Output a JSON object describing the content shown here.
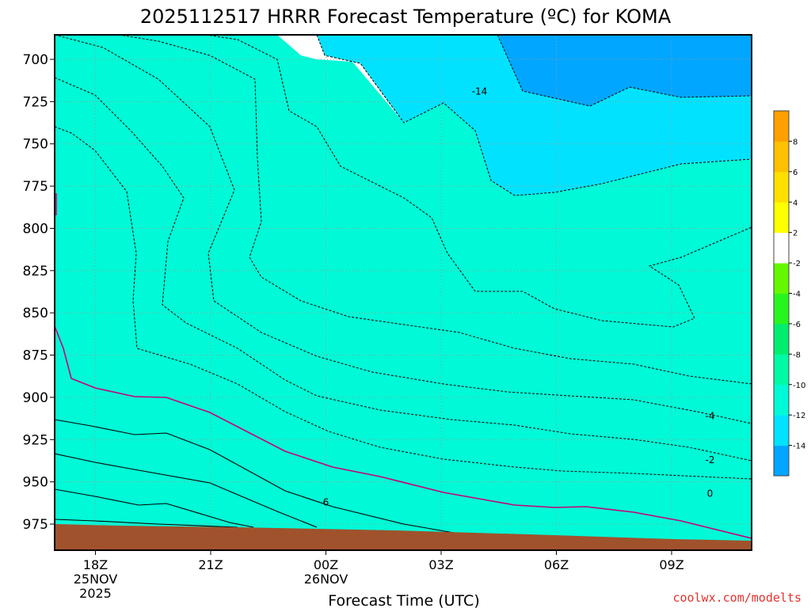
{
  "title": "2025112517 HRRR Forecast Temperature (ºC) for KOMA",
  "xlabel": "Forecast Time (UTC)",
  "credit": "coolwx.com/modelts",
  "chart_data": {
    "type": "heatmap",
    "title": "2025112517 HRRR Forecast Temperature (ºC) for KOMA",
    "xlabel": "Forecast Time (UTC)",
    "ylabel": "",
    "y_scale": "pressure (hPa), decreasing upward",
    "ylim": [
      988,
      686
    ],
    "x_ticks": [
      {
        "label": "18Z",
        "sub": [
          "25NOV",
          "2025"
        ]
      },
      {
        "label": "21Z",
        "sub": []
      },
      {
        "label": "00Z",
        "sub": [
          "26NOV"
        ]
      },
      {
        "label": "03Z",
        "sub": []
      },
      {
        "label": "06Z",
        "sub": []
      },
      {
        "label": "09Z",
        "sub": []
      }
    ],
    "y_ticks": [
      700,
      725,
      750,
      775,
      800,
      825,
      850,
      875,
      900,
      925,
      950,
      975
    ],
    "colorbar": {
      "levels": [
        -16,
        -14,
        -12,
        -10,
        -8,
        -6,
        -4,
        -2,
        2,
        4,
        6,
        8,
        10
      ],
      "labels": [
        "-14",
        "-12",
        "-10",
        "-8",
        "-6",
        "-4",
        "-2",
        "2",
        "4",
        "6",
        "8"
      ],
      "colors": [
        "#00a6ff",
        "#00e2ff",
        "#00f9d6",
        "#00f9a4",
        "#00ed70",
        "#28f520",
        "#64f800",
        "#ffffff",
        "#ffff00",
        "#ffdf00",
        "#ffc000",
        "#ffa000"
      ]
    },
    "contour_labels": [
      {
        "text": "-14",
        "x_hour": 11.0,
        "p": 719
      },
      {
        "text": "-4",
        "x_hour": 17.0,
        "p": 911
      },
      {
        "text": "-2",
        "x_hour": 17.0,
        "p": 937
      },
      {
        "text": "0",
        "x_hour": 17.0,
        "p": 957
      },
      {
        "text": "6",
        "x_hour": 7.0,
        "p": 962
      }
    ],
    "grid": true,
    "ground": "brown fill near surface (~975 hPa)"
  }
}
